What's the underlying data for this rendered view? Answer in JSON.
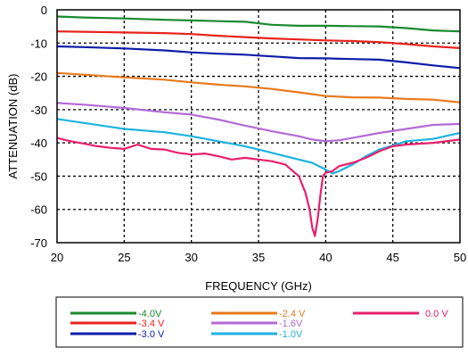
{
  "chart_data": {
    "type": "line",
    "title": "",
    "xlabel": "FREQUENCY (GHz)",
    "ylabel": "ATTENUATION (dB)",
    "xlim": [
      20,
      50
    ],
    "ylim": [
      -70,
      0
    ],
    "xticks": [
      20,
      25,
      30,
      35,
      40,
      45,
      50
    ],
    "yticks": [
      0,
      -10,
      -20,
      -30,
      -40,
      -50,
      -60,
      -70
    ],
    "grid": true,
    "legend_position": "bottom",
    "series": [
      {
        "name": "-4.0V",
        "color": "#1a8a2e",
        "x": [
          20,
          22,
          25,
          28,
          30,
          32,
          34,
          36,
          38,
          40,
          42,
          44,
          46,
          48,
          50
        ],
        "y": [
          -2.0,
          -2.3,
          -2.6,
          -3.0,
          -3.2,
          -3.4,
          -3.6,
          -4.5,
          -4.8,
          -4.8,
          -4.9,
          -5.0,
          -5.5,
          -6.2,
          -6.5
        ]
      },
      {
        "name": "-3.4 V",
        "color": "#e8231c",
        "x": [
          20,
          22,
          25,
          28,
          30,
          32,
          34,
          36,
          38,
          40,
          42,
          44,
          46,
          48,
          50
        ],
        "y": [
          -6.5,
          -6.6,
          -6.8,
          -7.0,
          -7.3,
          -7.8,
          -8.2,
          -8.6,
          -8.9,
          -9.2,
          -9.4,
          -9.7,
          -10.3,
          -11.0,
          -11.5
        ]
      },
      {
        "name": "-3.0 V",
        "color": "#0d1da8",
        "x": [
          20,
          22,
          25,
          28,
          30,
          32,
          34,
          36,
          38,
          40,
          42,
          44,
          46,
          48,
          50
        ],
        "y": [
          -11.0,
          -11.2,
          -11.6,
          -12.2,
          -12.8,
          -13.2,
          -13.5,
          -14.0,
          -14.5,
          -14.6,
          -14.8,
          -15.0,
          -15.8,
          -16.7,
          -17.5
        ]
      },
      {
        "name": "-2.4 V",
        "color": "#e87a1c",
        "x": [
          20,
          22,
          25,
          28,
          30,
          32,
          34,
          36,
          38,
          40,
          42,
          44,
          46,
          48,
          50
        ],
        "y": [
          -19.0,
          -19.5,
          -20.3,
          -21.0,
          -21.8,
          -22.5,
          -23.0,
          -23.8,
          -24.8,
          -25.9,
          -26.3,
          -26.4,
          -26.8,
          -27.0,
          -27.8
        ]
      },
      {
        "name": "-1.6V",
        "color": "#b36ad6",
        "x": [
          20,
          22,
          25,
          28,
          30,
          32,
          34,
          36,
          38,
          39,
          40,
          41,
          42,
          44,
          46,
          48,
          50
        ],
        "y": [
          -28.0,
          -28.5,
          -29.5,
          -30.8,
          -31.5,
          -33.0,
          -34.8,
          -36.5,
          -38.0,
          -39.0,
          -39.5,
          -39.2,
          -38.5,
          -37.0,
          -35.8,
          -34.6,
          -34.3
        ]
      },
      {
        "name": "-1.0V",
        "color": "#1eb3e0",
        "x": [
          20,
          22,
          25,
          28,
          30,
          32,
          34,
          35,
          36,
          37,
          38,
          39,
          40,
          40.5,
          41,
          42,
          43,
          44,
          45,
          46,
          48,
          50
        ],
        "y": [
          -32.8,
          -34.0,
          -35.8,
          -36.8,
          -38.0,
          -39.5,
          -41.0,
          -42.0,
          -43.0,
          -44.0,
          -45.0,
          -46.0,
          -48.0,
          -49.2,
          -48.5,
          -46.5,
          -44.0,
          -42.0,
          -40.8,
          -39.5,
          -38.8,
          -37.0
        ]
      },
      {
        "name": "0.0 V",
        "color": "#e81f6e",
        "x": [
          20,
          21,
          22,
          23,
          24,
          25,
          26,
          27,
          28,
          29,
          30,
          31,
          32,
          33,
          34,
          35,
          36,
          37,
          38,
          38.5,
          38.8,
          39.0,
          39.2,
          39.4,
          39.6,
          39.8,
          40,
          40.5,
          41,
          42,
          43,
          44,
          45,
          46,
          48,
          50
        ],
        "y": [
          -38.5,
          -39.5,
          -40.2,
          -41.0,
          -41.5,
          -41.8,
          -40.5,
          -41.8,
          -42.0,
          -43.0,
          -43.5,
          -43.2,
          -44.0,
          -45.0,
          -44.5,
          -45.0,
          -45.5,
          -46.5,
          -50.0,
          -55.0,
          -60.0,
          -65.5,
          -68.0,
          -63.0,
          -56.0,
          -50.0,
          -49.0,
          -48.5,
          -47.0,
          -46.0,
          -44.5,
          -42.5,
          -41.0,
          -40.5,
          -40.0,
          -39.0
        ]
      }
    ]
  }
}
